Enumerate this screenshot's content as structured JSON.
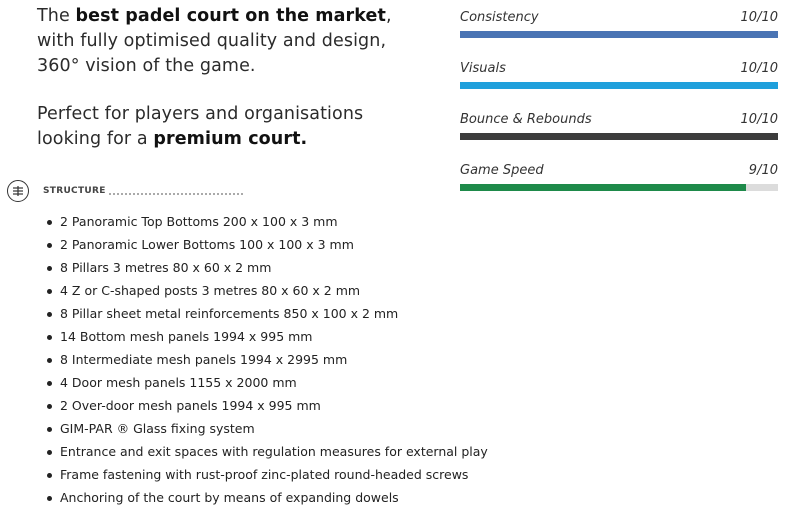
{
  "intro": {
    "p1_bold": "best padel court on the market",
    "p1_pre": "The ",
    "p1_rest_line1": ",",
    "p1_line2": "with fully optimised quality and design,",
    "p1_line3": "360° vision of the game.",
    "p2_line1": "Perfect for players and organisations",
    "p2_pre": "looking for a ",
    "p2_bold": "premium court."
  },
  "ratings": [
    {
      "label": "Consistency",
      "score": "10/10",
      "value": 1.0,
      "color": "#4a74b4"
    },
    {
      "label": "Visuals",
      "score": "10/10",
      "value": 1.0,
      "color": "#1fa0dc"
    },
    {
      "label": "Bounce & Rebounds",
      "score": "10/10",
      "value": 1.0,
      "color": "#3c3c3c"
    },
    {
      "label": "Game Speed",
      "score": "9/10",
      "value": 0.9,
      "color": "#1e8a4a"
    }
  ],
  "structure": {
    "icon": "structure-lines-icon",
    "title": "STRUCTURE",
    "items": [
      "2 Panoramic Top Bottoms 200 x 100 x 3 mm",
      "2 Panoramic Lower Bottoms 100 x 100 x 3 mm",
      "8 Pillars 3 metres 80 x 60 x 2 mm",
      "4 Z or C-shaped posts 3 metres 80 x 60 x 2 mm",
      "8 Pillar sheet metal reinforcements 850 x 100 x 2 mm",
      "14 Bottom mesh panels 1994 x 995 mm",
      "8 Intermediate mesh panels 1994 x 2995 mm",
      "4 Door mesh panels 1155 x 2000 mm",
      "2 Over-door mesh panels 1994 x 995 mm",
      "GIM-PAR ® Glass fixing system",
      "Entrance and exit spaces with regulation measures for external play",
      "Frame fastening with rust-proof zinc-plated round-headed screws",
      "Anchoring of the court by means of expanding dowels"
    ]
  }
}
